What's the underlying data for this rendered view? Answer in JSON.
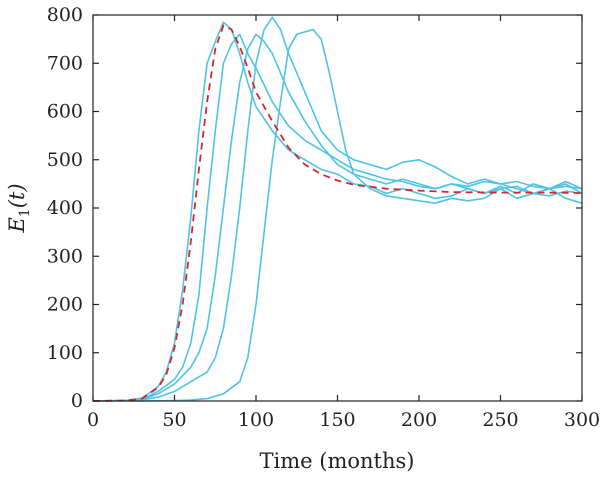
{
  "chart_data": {
    "type": "line",
    "title": "",
    "xlabel": "Time (months)",
    "ylabel_main": "E",
    "ylabel_sub": "1",
    "ylabel_arg": "(t)",
    "xlim": [
      0,
      300
    ],
    "ylim": [
      0,
      800
    ],
    "xticks": [
      0,
      50,
      100,
      150,
      200,
      250,
      300
    ],
    "yticks": [
      0,
      100,
      200,
      300,
      400,
      500,
      600,
      700,
      800
    ],
    "grid": false,
    "legend": "none",
    "colors": {
      "simulation": "#4fc3e8",
      "mean": "#d9262b"
    },
    "series": [
      {
        "style": "dashed-red",
        "x": [
          0,
          20,
          30,
          40,
          45,
          50,
          55,
          60,
          65,
          70,
          75,
          80,
          85,
          90,
          95,
          100,
          110,
          120,
          130,
          140,
          150,
          160,
          180,
          200,
          220,
          250,
          280,
          300
        ],
        "y": [
          0,
          1,
          5,
          28,
          55,
          110,
          200,
          330,
          480,
          620,
          730,
          778,
          770,
          735,
          690,
          640,
          580,
          525,
          490,
          470,
          457,
          448,
          440,
          436,
          433,
          432,
          432,
          431
        ]
      },
      {
        "style": "solid-blue",
        "x": [
          0,
          20,
          30,
          40,
          45,
          50,
          55,
          60,
          65,
          70,
          75,
          80,
          85,
          90,
          95,
          100,
          110,
          120,
          130,
          140,
          150,
          160,
          170,
          180,
          190,
          200,
          210,
          220,
          230,
          240,
          250,
          260,
          270,
          280,
          290,
          300
        ],
        "y": [
          0,
          1,
          6,
          30,
          60,
          120,
          230,
          380,
          560,
          700,
          745,
          785,
          770,
          720,
          660,
          610,
          560,
          520,
          500,
          480,
          470,
          450,
          445,
          430,
          440,
          430,
          420,
          425,
          440,
          430,
          440,
          445,
          430,
          425,
          435,
          430
        ]
      },
      {
        "style": "solid-blue",
        "x": [
          0,
          20,
          30,
          40,
          50,
          55,
          60,
          65,
          70,
          75,
          80,
          85,
          90,
          95,
          100,
          110,
          120,
          130,
          140,
          150,
          160,
          170,
          180,
          190,
          200,
          210,
          220,
          230,
          240,
          250,
          260,
          270,
          280,
          290,
          300
        ],
        "y": [
          0,
          1,
          4,
          20,
          45,
          70,
          120,
          220,
          400,
          560,
          700,
          740,
          760,
          720,
          690,
          620,
          570,
          540,
          520,
          500,
          480,
          470,
          460,
          455,
          445,
          440,
          450,
          440,
          430,
          445,
          430,
          450,
          440,
          445,
          440
        ]
      },
      {
        "style": "solid-blue",
        "x": [
          0,
          20,
          30,
          40,
          50,
          60,
          65,
          70,
          75,
          80,
          85,
          90,
          95,
          100,
          105,
          110,
          120,
          130,
          140,
          150,
          160,
          170,
          180,
          190,
          200,
          210,
          220,
          230,
          240,
          250,
          260,
          270,
          280,
          290,
          300
        ],
        "y": [
          0,
          1,
          3,
          15,
          35,
          70,
          100,
          150,
          260,
          400,
          540,
          660,
          730,
          760,
          745,
          720,
          640,
          580,
          530,
          490,
          470,
          460,
          450,
          460,
          450,
          440,
          450,
          445,
          455,
          450,
          440,
          430,
          440,
          420,
          410
        ]
      },
      {
        "style": "solid-blue",
        "x": [
          0,
          20,
          30,
          40,
          50,
          60,
          70,
          75,
          80,
          85,
          90,
          95,
          100,
          105,
          110,
          115,
          120,
          130,
          140,
          150,
          160,
          170,
          180,
          190,
          200,
          210,
          220,
          230,
          240,
          250,
          260,
          270,
          280,
          290,
          300
        ],
        "y": [
          0,
          1,
          2,
          8,
          20,
          40,
          60,
          90,
          150,
          260,
          400,
          560,
          700,
          770,
          795,
          770,
          720,
          640,
          560,
          520,
          500,
          490,
          480,
          495,
          500,
          485,
          465,
          450,
          460,
          450,
          455,
          445,
          440,
          450,
          430
        ]
      },
      {
        "style": "solid-blue",
        "x": [
          0,
          30,
          50,
          60,
          70,
          80,
          90,
          95,
          100,
          105,
          110,
          115,
          120,
          125,
          130,
          135,
          140,
          145,
          150,
          155,
          160,
          170,
          180,
          190,
          200,
          210,
          220,
          230,
          240,
          250,
          260,
          270,
          280,
          290,
          300
        ],
        "y": [
          0,
          0,
          1,
          2,
          5,
          15,
          40,
          90,
          200,
          350,
          500,
          620,
          730,
          760,
          765,
          770,
          750,
          680,
          600,
          520,
          470,
          440,
          425,
          420,
          415,
          410,
          420,
          415,
          420,
          440,
          420,
          430,
          440,
          455,
          440
        ]
      }
    ]
  }
}
